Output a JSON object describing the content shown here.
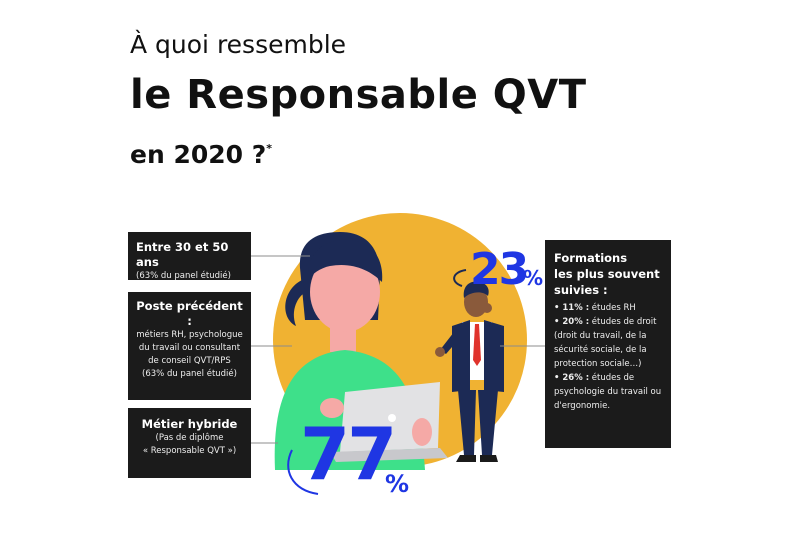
{
  "title": {
    "line1": "À quoi ressemble",
    "line2": "le Responsable QVT",
    "line3": "en 2020 ?",
    "footnote_mark": "*"
  },
  "boxes": {
    "age": {
      "heading": "Entre 30 et 50 ans",
      "sub": "(63% du panel étudié)"
    },
    "previous_job": {
      "heading": "Poste précédent :",
      "lines": [
        "métiers RH, psychologue",
        "du travail ou consultant",
        "de conseil QVT/RPS",
        "(63% du panel étudié)"
      ]
    },
    "hybrid": {
      "heading": "Métier hybride",
      "lines": [
        "(Pas de diplôme",
        "« Responsable QVT »)"
      ]
    },
    "training": {
      "heading_lines": [
        "Formations",
        "les plus souvent",
        "suivies :"
      ],
      "items": [
        {
          "bold": "• 11% :",
          "text": " études RH"
        },
        {
          "bold": "• 20% :",
          "text": " études de droit (droit du travail, de la sécurité sociale, de la protection sociale…)"
        },
        {
          "bold": "• 26% :",
          "text": " études de psychologie du travail ou d'ergonomie."
        }
      ]
    }
  },
  "stats": {
    "women_value": "77",
    "men_value": "23",
    "percent_sign": "%"
  },
  "colors": {
    "accent": "#1f36e3",
    "circle": "#f0b232",
    "box": "#1b1b1b",
    "sweater": "#3ee08a",
    "hair": "#1c2a55",
    "skin": "#f5a9a6"
  }
}
